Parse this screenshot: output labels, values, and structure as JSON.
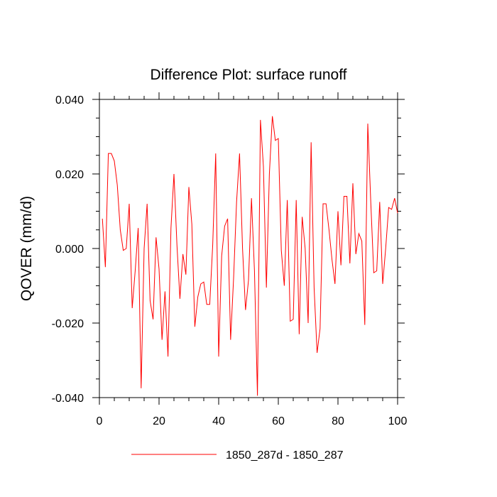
{
  "chart_data": {
    "type": "line",
    "title": "Difference Plot: surface runoff",
    "xlabel": "",
    "ylabel": "QOVER  (mm/d)",
    "xlim": [
      0,
      100
    ],
    "ylim": [
      -0.04,
      0.04
    ],
    "x_ticks": [
      0,
      20,
      40,
      60,
      80,
      100
    ],
    "x_tick_labels": [
      "0",
      "20",
      "40",
      "60",
      "80",
      "100"
    ],
    "y_ticks": [
      -0.04,
      -0.02,
      0.0,
      0.02,
      0.04
    ],
    "y_tick_labels": [
      "-0.040",
      "-0.020",
      "0.000",
      "0.020",
      "0.040"
    ],
    "grid": false,
    "legend_position": "bottom",
    "colors": {
      "line": "#ff0000",
      "axes": "#000000"
    },
    "series": [
      {
        "name": "1850_287d - 1850_287",
        "x": [
          1,
          2,
          3,
          4,
          5,
          6,
          7,
          8,
          9,
          10,
          11,
          12,
          13,
          14,
          15,
          16,
          17,
          18,
          19,
          20,
          21,
          22,
          23,
          24,
          25,
          26,
          27,
          28,
          29,
          30,
          31,
          32,
          33,
          34,
          35,
          36,
          37,
          38,
          39,
          40,
          41,
          42,
          43,
          44,
          45,
          46,
          47,
          48,
          49,
          50,
          51,
          52,
          53,
          54,
          55,
          56,
          57,
          58,
          59,
          60,
          61,
          62,
          63,
          64,
          65,
          66,
          67,
          68,
          69,
          70,
          71,
          72,
          73,
          74,
          75,
          76,
          77,
          78,
          79,
          80,
          81,
          82,
          83,
          84,
          85,
          86,
          87,
          88,
          89,
          90,
          91,
          92,
          93,
          94,
          95,
          96,
          97,
          98,
          99,
          100
        ],
        "values": [
          0.008,
          -0.005,
          0.0255,
          0.0255,
          0.0235,
          0.017,
          0.005,
          -0.0005,
          0.0,
          0.012,
          -0.016,
          -0.006,
          0.0055,
          -0.0375,
          0.0,
          0.012,
          -0.014,
          -0.019,
          0.003,
          -0.0055,
          -0.0245,
          -0.0115,
          -0.029,
          0.0055,
          0.02,
          0.001,
          -0.0135,
          -0.0015,
          -0.007,
          0.0165,
          0.0065,
          -0.021,
          -0.013,
          -0.0095,
          -0.009,
          -0.015,
          -0.015,
          0.001,
          0.0255,
          -0.029,
          -0.002,
          0.006,
          0.008,
          -0.0245,
          -0.008,
          0.0125,
          0.0255,
          0.0,
          -0.0165,
          -0.0085,
          0.0135,
          -0.006,
          -0.0395,
          0.0345,
          0.022,
          -0.0105,
          0.02,
          0.0355,
          0.029,
          0.0295,
          -0.0005,
          -0.01,
          0.013,
          -0.0195,
          -0.019,
          0.013,
          -0.023,
          0.0085,
          0.0,
          -0.02,
          0.0285,
          -0.0105,
          -0.028,
          -0.0215,
          0.012,
          0.012,
          0.005,
          -0.003,
          -0.0095,
          0.01,
          -0.0045,
          0.014,
          0.014,
          -0.004,
          0.0175,
          -0.0015,
          0.004,
          0.002,
          -0.0205,
          0.0335,
          0.0125,
          -0.0065,
          -0.006,
          0.0125,
          -0.0095,
          0.0,
          0.011,
          0.0105,
          0.0135,
          0.0095
        ]
      }
    ]
  }
}
